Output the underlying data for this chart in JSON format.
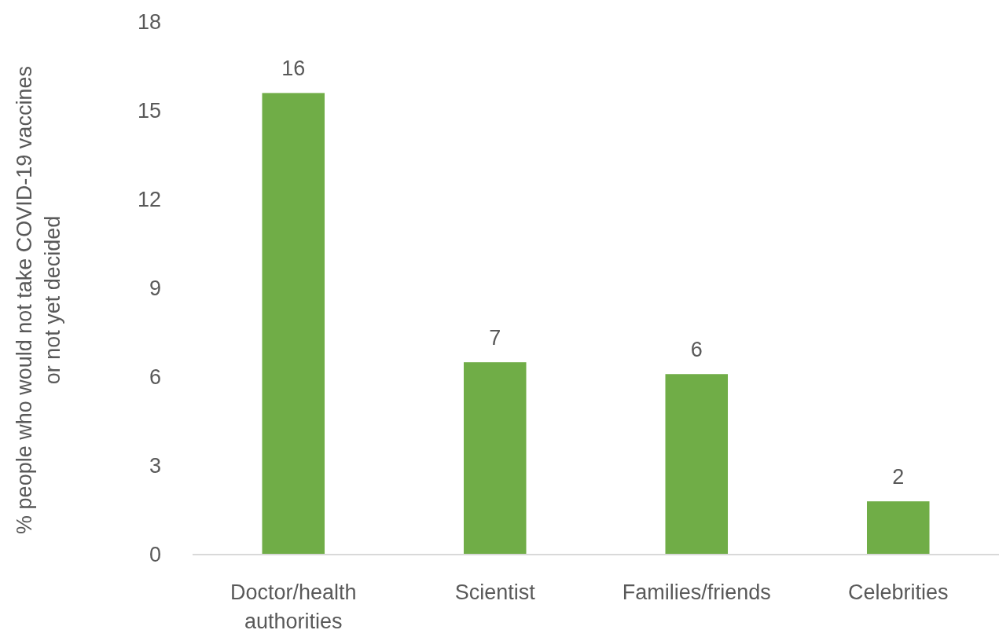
{
  "chart_data": {
    "type": "bar",
    "ylabel": "% people who would not take COVID-19 vaccines or not yet decided",
    "categories": [
      "Doctor/health authorities",
      "Scientist",
      "Families/friends",
      "Celebrities"
    ],
    "values": [
      15.6,
      6.5,
      6.1,
      1.8
    ],
    "value_labels": [
      "16",
      "7",
      "6",
      "2"
    ],
    "color": "#70ad47",
    "ylim": [
      0,
      18
    ],
    "yticks": [
      0,
      3,
      6,
      9,
      12,
      15,
      18
    ],
    "grid": false
  }
}
